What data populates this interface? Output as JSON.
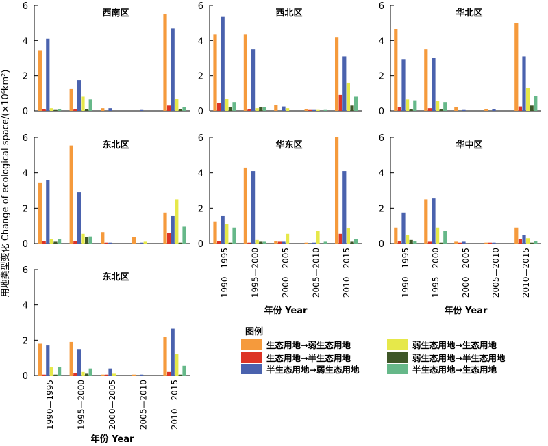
{
  "y_axis_label": "用地类型变化 Change of ecological space/(×10⁶km²)",
  "x_axis_label": "年份 Year",
  "categories": [
    "1990—1995",
    "1995—2000",
    "2000—2005",
    "2005—2010",
    "2010—2015"
  ],
  "y_ticks": [
    "0",
    "2",
    "4",
    "6"
  ],
  "legend": {
    "title": "图例",
    "items": [
      {
        "label": "生态用地→弱生态用地",
        "color": "#F59A3C"
      },
      {
        "label": "生态用地→半生态用地",
        "color": "#DD3426"
      },
      {
        "label": "半生态用地→弱生态用地",
        "color": "#4A62AE"
      },
      {
        "label": "弱生态用地→生态用地",
        "color": "#E6E84A"
      },
      {
        "label": "弱生态用地→半生态用地",
        "color": "#3E5728"
      },
      {
        "label": "半生态用地→生态用地",
        "color": "#66B889"
      }
    ]
  },
  "chart_data": [
    {
      "type": "bar",
      "title": "西南区",
      "ylim": [
        0,
        6
      ],
      "categories": [
        "1990—1995",
        "1995—2000",
        "2000—2005",
        "2005—2010",
        "2010—2015"
      ],
      "series": [
        {
          "name": "生态用地→弱生态用地",
          "values": [
            3.45,
            1.25,
            0.15,
            0.0,
            5.5
          ]
        },
        {
          "name": "生态用地→半生态用地",
          "values": [
            0.1,
            0.1,
            0.0,
            0.0,
            0.3
          ]
        },
        {
          "name": "半生态用地→弱生态用地",
          "values": [
            4.1,
            1.75,
            0.15,
            0.05,
            4.7
          ]
        },
        {
          "name": "弱生态用地→生态用地",
          "values": [
            0.15,
            0.8,
            0.0,
            0.0,
            0.7
          ]
        },
        {
          "name": "弱生态用地→半生态用地",
          "values": [
            0.05,
            0.1,
            0.0,
            0.0,
            0.1
          ]
        },
        {
          "name": "半生态用地→生态用地",
          "values": [
            0.1,
            0.65,
            0.0,
            0.0,
            0.2
          ]
        }
      ]
    },
    {
      "type": "bar",
      "title": "西北区",
      "ylim": [
        0,
        6
      ],
      "categories": [
        "1990—1995",
        "1995—2000",
        "2000—2005",
        "2005—2010",
        "2010—2015"
      ],
      "series": [
        {
          "name": "生态用地→弱生态用地",
          "values": [
            4.35,
            4.35,
            0.35,
            0.1,
            4.2
          ]
        },
        {
          "name": "生态用地→半生态用地",
          "values": [
            0.45,
            0.1,
            0.0,
            0.05,
            0.9
          ]
        },
        {
          "name": "半生态用地→弱生态用地",
          "values": [
            5.35,
            3.5,
            0.25,
            0.05,
            3.1
          ]
        },
        {
          "name": "弱生态用地→生态用地",
          "values": [
            0.7,
            0.15,
            0.15,
            0.05,
            1.6
          ]
        },
        {
          "name": "弱生态用地→半生态用地",
          "values": [
            0.2,
            0.2,
            0.0,
            0.0,
            0.3
          ]
        },
        {
          "name": "半生态用地→生态用地",
          "values": [
            0.5,
            0.2,
            0.0,
            0.05,
            0.8
          ]
        }
      ]
    },
    {
      "type": "bar",
      "title": "华北区",
      "ylim": [
        0,
        6
      ],
      "categories": [
        "1990—1995",
        "1995—2000",
        "2000—2005",
        "2005—2010",
        "2010—2015"
      ],
      "series": [
        {
          "name": "生态用地→弱生态用地",
          "values": [
            4.65,
            3.5,
            0.2,
            0.1,
            5.0
          ]
        },
        {
          "name": "生态用地→半生态用地",
          "values": [
            0.2,
            0.15,
            0.0,
            0.0,
            0.25
          ]
        },
        {
          "name": "半生态用地→弱生态用地",
          "values": [
            2.95,
            3.0,
            0.05,
            0.1,
            3.1
          ]
        },
        {
          "name": "弱生态用地→生态用地",
          "values": [
            0.65,
            0.55,
            0.0,
            0.0,
            1.3
          ]
        },
        {
          "name": "弱生态用地→半生态用地",
          "values": [
            0.1,
            0.1,
            0.0,
            0.0,
            0.3
          ]
        },
        {
          "name": "半生态用地→生态用地",
          "values": [
            0.6,
            0.5,
            0.0,
            0.0,
            0.85
          ]
        }
      ]
    },
    {
      "type": "bar",
      "title": "东北区",
      "ylim": [
        0,
        6
      ],
      "categories": [
        "1990—1995",
        "1995—2000",
        "2000—2005",
        "2005—2010",
        "2010—2015"
      ],
      "series": [
        {
          "name": "生态用地→弱生态用地",
          "values": [
            3.45,
            5.55,
            0.65,
            0.35,
            1.75
          ]
        },
        {
          "name": "生态用地→半生态用地",
          "values": [
            0.15,
            0.15,
            0.05,
            0.0,
            0.6
          ]
        },
        {
          "name": "半生态用地→弱生态用地",
          "values": [
            3.6,
            2.9,
            0.05,
            0.05,
            1.55
          ]
        },
        {
          "name": "弱生态用地→生态用地",
          "values": [
            0.25,
            0.55,
            0.0,
            0.1,
            2.5
          ]
        },
        {
          "name": "弱生态用地→半生态用地",
          "values": [
            0.1,
            0.35,
            0.0,
            0.0,
            0.05
          ]
        },
        {
          "name": "半生态用地→生态用地",
          "values": [
            0.25,
            0.4,
            0.0,
            0.0,
            0.95
          ]
        }
      ]
    },
    {
      "type": "bar",
      "title": "华东区",
      "ylim": [
        0,
        6
      ],
      "categories": [
        "1990—1995",
        "1995—2000",
        "2000—2005",
        "2005—2010",
        "2010—2015"
      ],
      "series": [
        {
          "name": "生态用地→弱生态用地",
          "values": [
            1.25,
            4.3,
            0.15,
            0.05,
            6.0
          ]
        },
        {
          "name": "生态用地→半生态用地",
          "values": [
            0.15,
            0.05,
            0.1,
            0.0,
            0.55
          ]
        },
        {
          "name": "半生态用地→弱生态用地",
          "values": [
            1.55,
            4.1,
            0.1,
            0.05,
            4.1
          ]
        },
        {
          "name": "弱生态用地→生态用地",
          "values": [
            1.1,
            0.2,
            0.55,
            0.7,
            0.85
          ]
        },
        {
          "name": "弱生态用地→半生态用地",
          "values": [
            0.05,
            0.1,
            0.0,
            0.0,
            0.1
          ]
        },
        {
          "name": "半生态用地→生态用地",
          "values": [
            0.9,
            0.1,
            0.0,
            0.1,
            0.25
          ]
        }
      ]
    },
    {
      "type": "bar",
      "title": "华中区",
      "ylim": [
        0,
        6
      ],
      "categories": [
        "1990—1995",
        "1995—2000",
        "2000—2005",
        "2005—2010",
        "2010—2015"
      ],
      "series": [
        {
          "name": "生态用地→弱生态用地",
          "values": [
            0.9,
            2.5,
            0.1,
            0.05,
            0.9
          ]
        },
        {
          "name": "生态用地→半生态用地",
          "values": [
            0.15,
            0.1,
            0.05,
            0.05,
            0.25
          ]
        },
        {
          "name": "半生态用地→弱生态用地",
          "values": [
            1.75,
            2.55,
            0.1,
            0.05,
            0.5
          ]
        },
        {
          "name": "弱生态用地→生态用地",
          "values": [
            0.5,
            0.9,
            0.0,
            0.0,
            0.3
          ]
        },
        {
          "name": "弱生态用地→半生态用地",
          "values": [
            0.2,
            0.05,
            0.0,
            0.0,
            0.05
          ]
        },
        {
          "name": "半生态用地→生态用地",
          "values": [
            0.15,
            0.7,
            0.0,
            0.0,
            0.15
          ]
        }
      ]
    },
    {
      "type": "bar",
      "title": "东北区",
      "ylim": [
        0,
        6
      ],
      "categories": [
        "1990—1995",
        "1995—2000",
        "2000—2005",
        "2005—2010",
        "2010—2015"
      ],
      "series": [
        {
          "name": "生态用地→弱生态用地",
          "values": [
            1.8,
            1.9,
            0.05,
            0.05,
            2.2
          ]
        },
        {
          "name": "生态用地→半生态用地",
          "values": [
            0.05,
            0.15,
            0.05,
            0.0,
            0.2
          ]
        },
        {
          "name": "半生态用地→弱生态用地",
          "values": [
            1.7,
            1.5,
            0.4,
            0.05,
            2.65
          ]
        },
        {
          "name": "弱生态用地→生态用地",
          "values": [
            0.5,
            0.2,
            0.1,
            0.0,
            1.2
          ]
        },
        {
          "name": "弱生态用地→半生态用地",
          "values": [
            0.05,
            0.1,
            0.0,
            0.0,
            0.05
          ]
        },
        {
          "name": "半生态用地→生态用地",
          "values": [
            0.5,
            0.4,
            0.0,
            0.0,
            0.55
          ]
        }
      ]
    }
  ]
}
